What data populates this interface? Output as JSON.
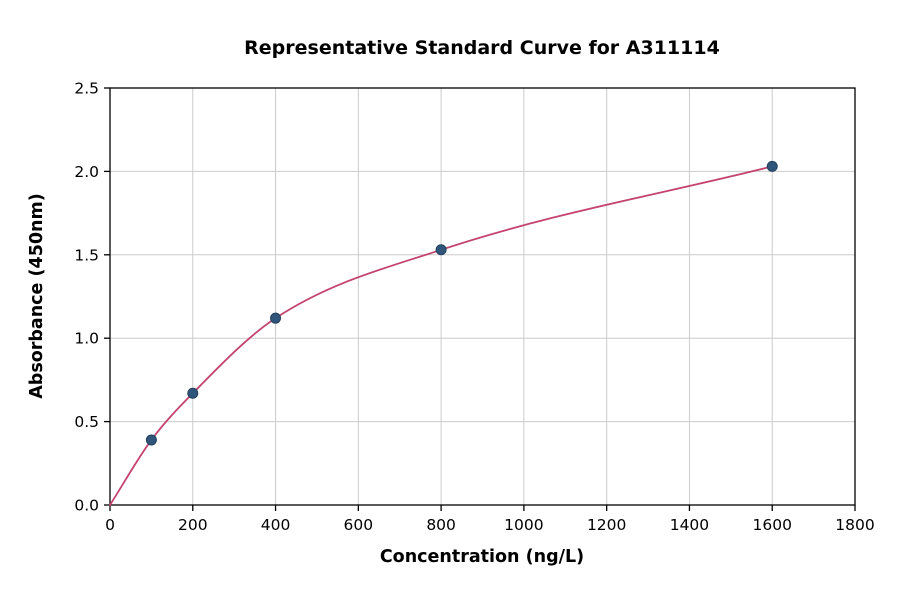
{
  "chart_data": {
    "type": "scatter",
    "title": "Representative Standard Curve for A311114",
    "xlabel": "Concentration (ng/L)",
    "ylabel": "Absorbance (450nm)",
    "x": [
      100,
      200,
      400,
      800,
      1600
    ],
    "y": [
      0.39,
      0.67,
      1.12,
      1.53,
      2.03
    ],
    "xlim": [
      0,
      1800
    ],
    "ylim": [
      0,
      2.5
    ],
    "xticks": [
      0,
      200,
      400,
      600,
      800,
      1000,
      1200,
      1400,
      1600,
      1800
    ],
    "yticks": [
      0,
      0.5,
      1,
      1.5,
      2,
      2.5
    ],
    "xtick_labels": [
      "0",
      "200",
      "400",
      "600",
      "800",
      "1000",
      "1200",
      "1400",
      "1600",
      "1800"
    ],
    "ytick_labels": [
      "0.0",
      "0.5",
      "1.0",
      "1.5",
      "2.0",
      "2.5"
    ],
    "grid": true,
    "legend": "none",
    "curve": {
      "description": "smooth saturating fit curve passing through origin and all data points",
      "start_point": [
        0,
        0
      ],
      "end_point": [
        1600,
        2.03
      ]
    },
    "colors": {
      "curve": "#c4446e",
      "point": "#2f557a",
      "point_edge": "#24405c",
      "grid": "#cccccc",
      "axis": "#000000",
      "background": "#ffffff"
    }
  }
}
